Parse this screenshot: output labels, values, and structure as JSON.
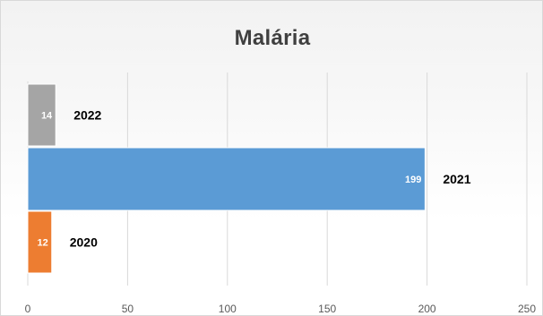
{
  "chart_data": {
    "type": "bar",
    "orientation": "horizontal",
    "title": "Malária",
    "categories": [
      "2022",
      "2021",
      "2020"
    ],
    "values": [
      14,
      199,
      12
    ],
    "data_labels": [
      "14",
      "199",
      "12"
    ],
    "bar_colors": [
      "#a5a5a5",
      "#5b9bd5",
      "#ed7d31"
    ],
    "xlim": [
      0,
      250
    ],
    "x_ticks": [
      "0",
      "50",
      "100",
      "150",
      "200",
      "250"
    ],
    "xlabel": "",
    "ylabel": "",
    "grid": true,
    "legend": "none",
    "category_labels_position": "after-bar-end"
  }
}
